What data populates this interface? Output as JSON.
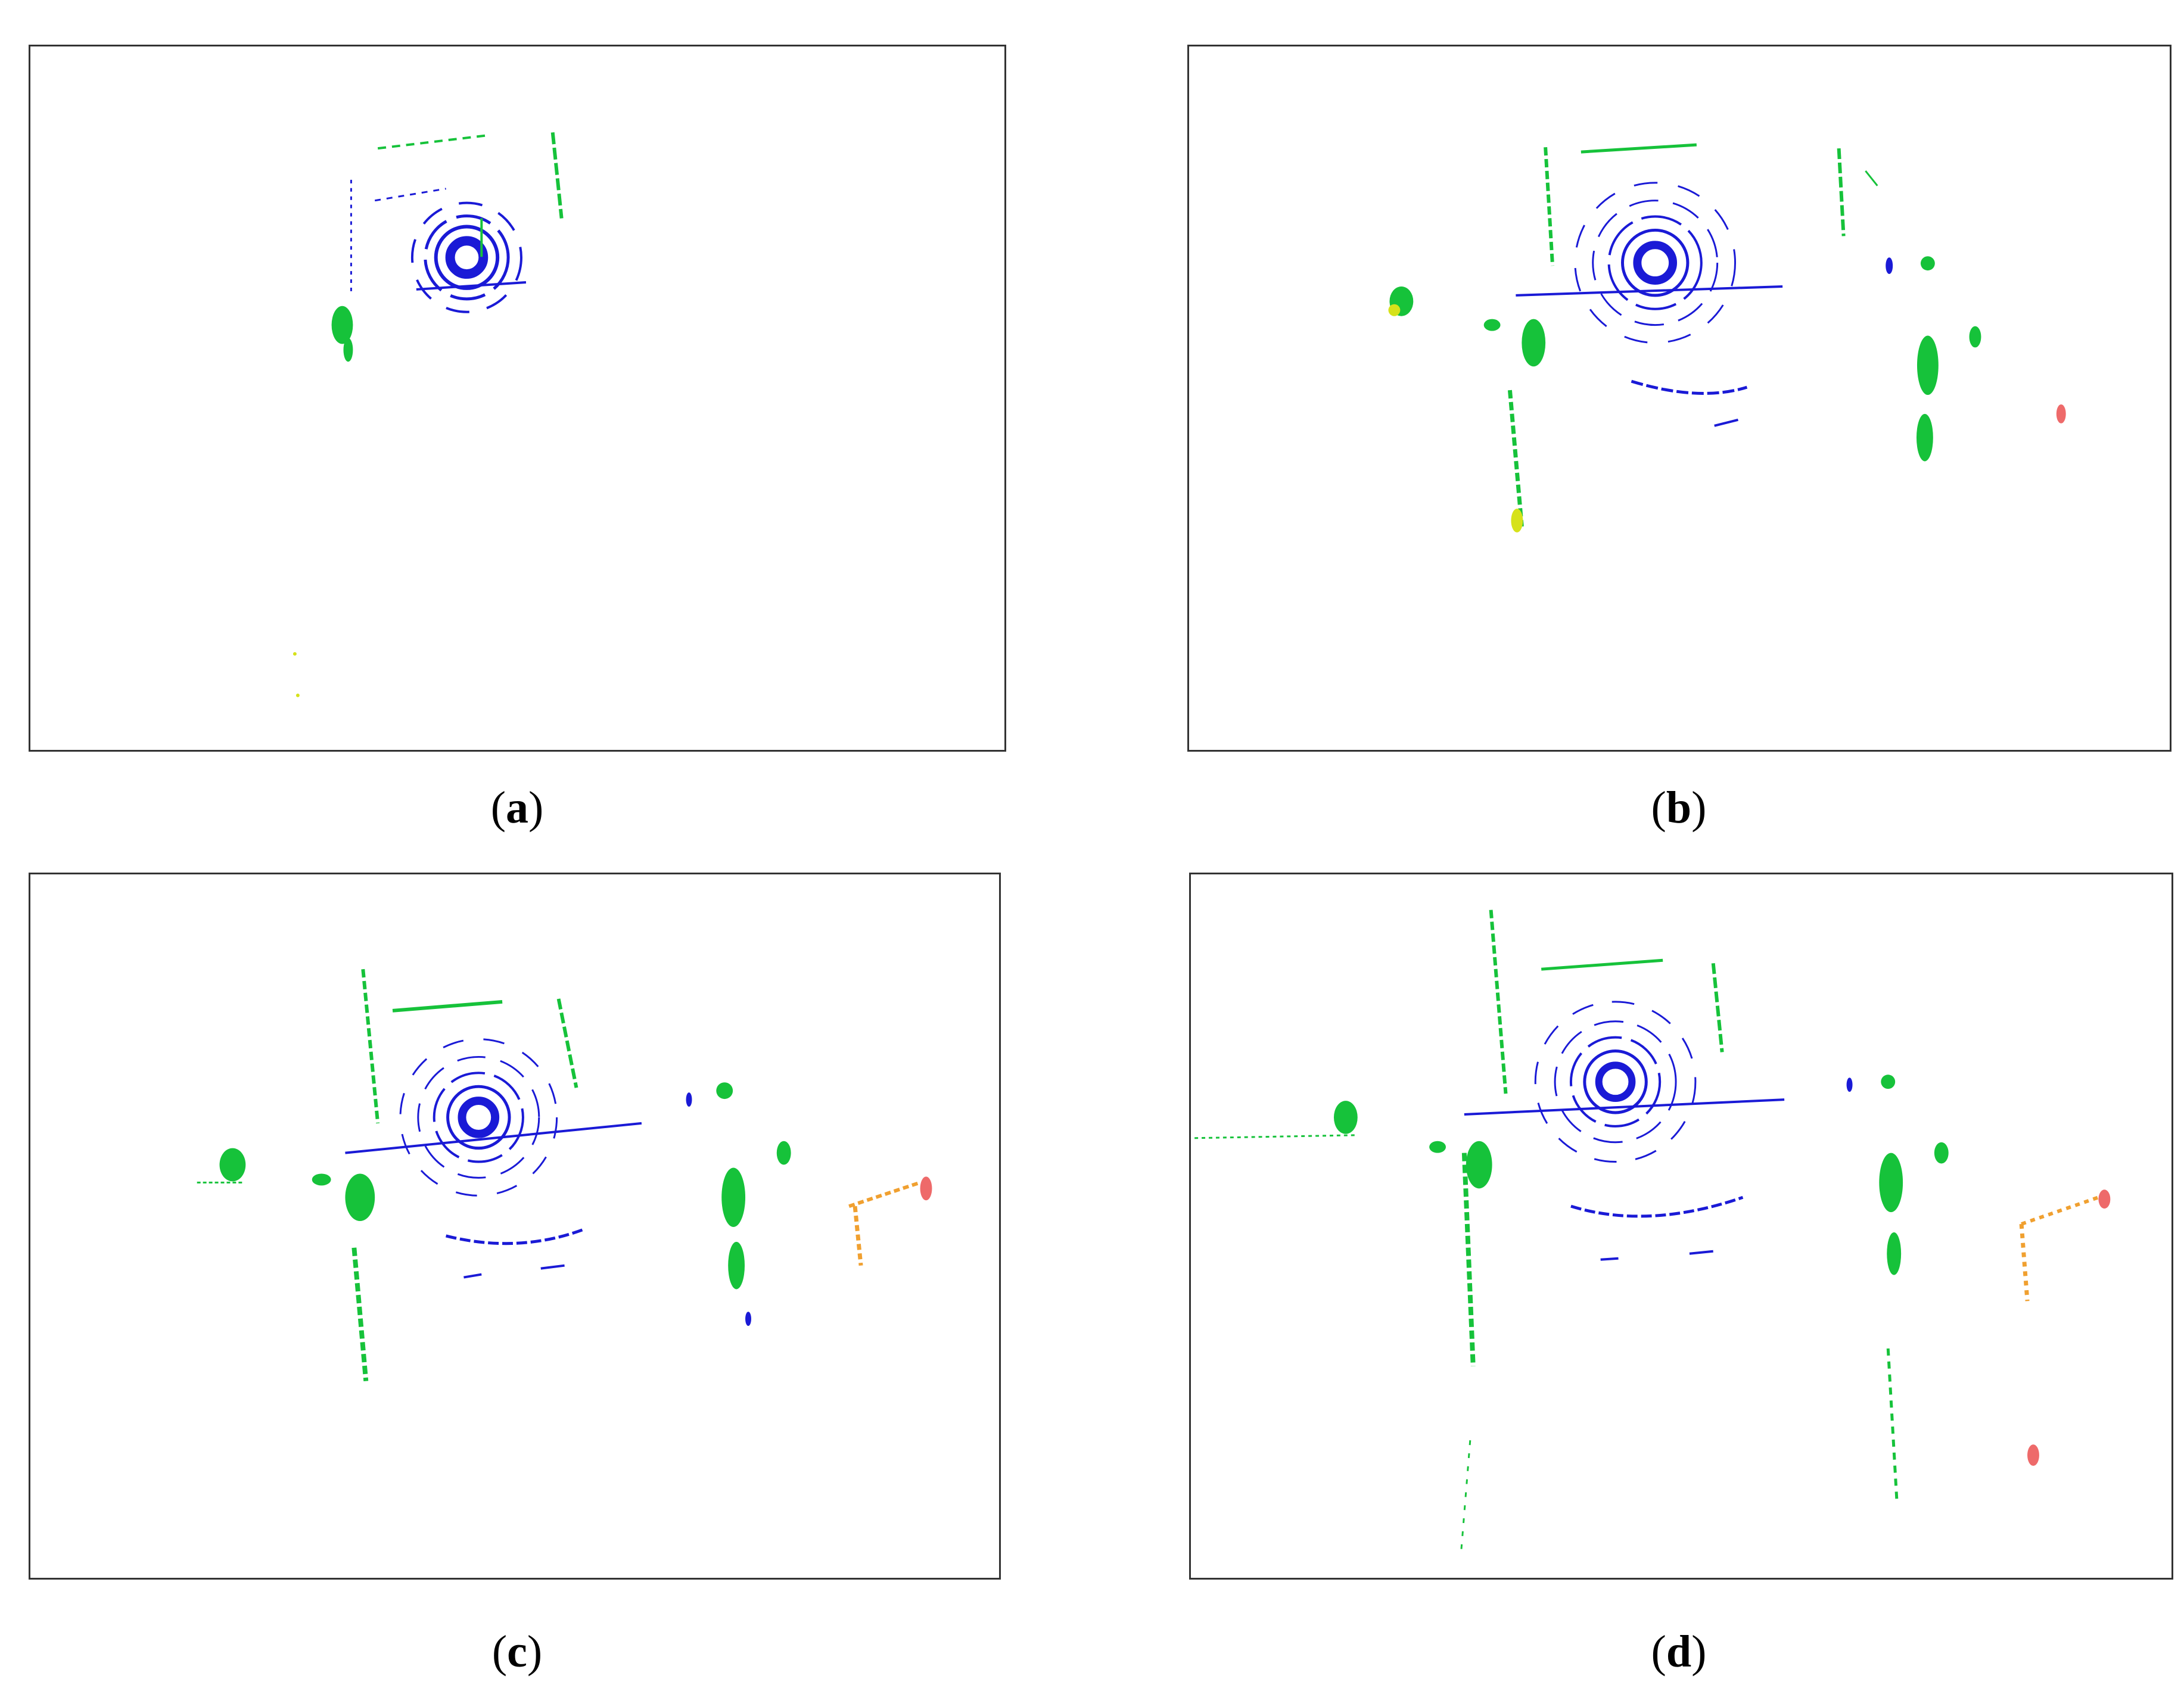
{
  "figure": {
    "panels": [
      {
        "id": "a",
        "caption_open": "(",
        "caption_letter": "a",
        "caption_close": ")"
      },
      {
        "id": "b",
        "caption_open": "(",
        "caption_letter": "b",
        "caption_close": ")"
      },
      {
        "id": "c",
        "caption_open": "(",
        "caption_letter": "c",
        "caption_close": ")"
      },
      {
        "id": "d",
        "caption_open": "(",
        "caption_letter": "d",
        "caption_close": ")"
      }
    ],
    "colors": {
      "blue": "#1a1ad6",
      "green": "#16c23a",
      "yellow": "#d6e21a",
      "orange": "#f0a030",
      "red": "#ee6a6a",
      "frame": "#333333"
    }
  }
}
